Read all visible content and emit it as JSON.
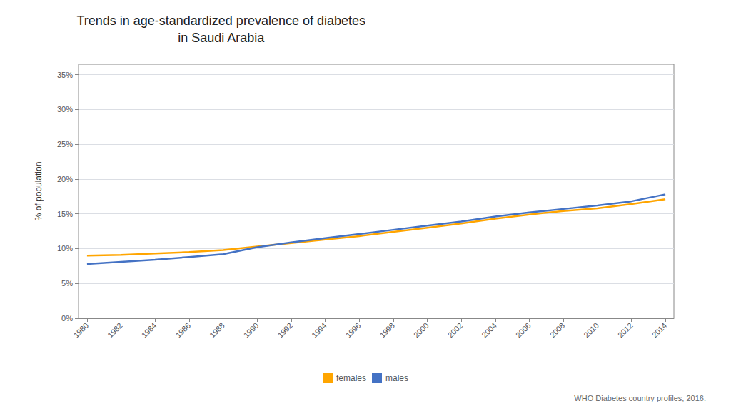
{
  "chart_data": {
    "type": "line",
    "title": "Trends in age-standardized prevalence of diabetes\nin Saudi Arabia",
    "ylabel": "% of population",
    "x": [
      1980,
      1982,
      1984,
      1986,
      1988,
      1990,
      1992,
      1994,
      1996,
      1998,
      2000,
      2002,
      2004,
      2006,
      2008,
      2010,
      2012,
      2014
    ],
    "series": [
      {
        "name": "females",
        "color": "#FFA500",
        "values": [
          9.0,
          9.1,
          9.3,
          9.5,
          9.8,
          10.3,
          10.8,
          11.3,
          11.8,
          12.4,
          13.0,
          13.6,
          14.3,
          14.9,
          15.4,
          15.8,
          16.4,
          17.1
        ]
      },
      {
        "name": "males",
        "color": "#4472C4",
        "values": [
          7.8,
          8.1,
          8.4,
          8.8,
          9.2,
          10.2,
          10.9,
          11.5,
          12.1,
          12.7,
          13.3,
          13.9,
          14.6,
          15.2,
          15.7,
          16.2,
          16.8,
          17.8
        ]
      }
    ],
    "xlim": [
      1979.5,
      2014.5
    ],
    "xticks": [
      1980,
      1982,
      1984,
      1986,
      1988,
      1990,
      1992,
      1994,
      1996,
      1998,
      2000,
      2002,
      2004,
      2006,
      2008,
      2010,
      2012,
      2014
    ],
    "ylim": [
      0,
      36.5
    ],
    "yticks": [
      {
        "value": 0,
        "label": "0%"
      },
      {
        "value": 5,
        "label": "5%"
      },
      {
        "value": 10,
        "label": "10%"
      },
      {
        "value": 15,
        "label": "15%"
      },
      {
        "value": 20,
        "label": "20%"
      },
      {
        "value": 25,
        "label": "25%"
      },
      {
        "value": 30,
        "label": "30%"
      },
      {
        "value": 35,
        "label": "35%"
      }
    ],
    "grid": true,
    "legend": "bottom",
    "annotations": [
      "WHO Diabetes country profiles, 2016."
    ]
  }
}
